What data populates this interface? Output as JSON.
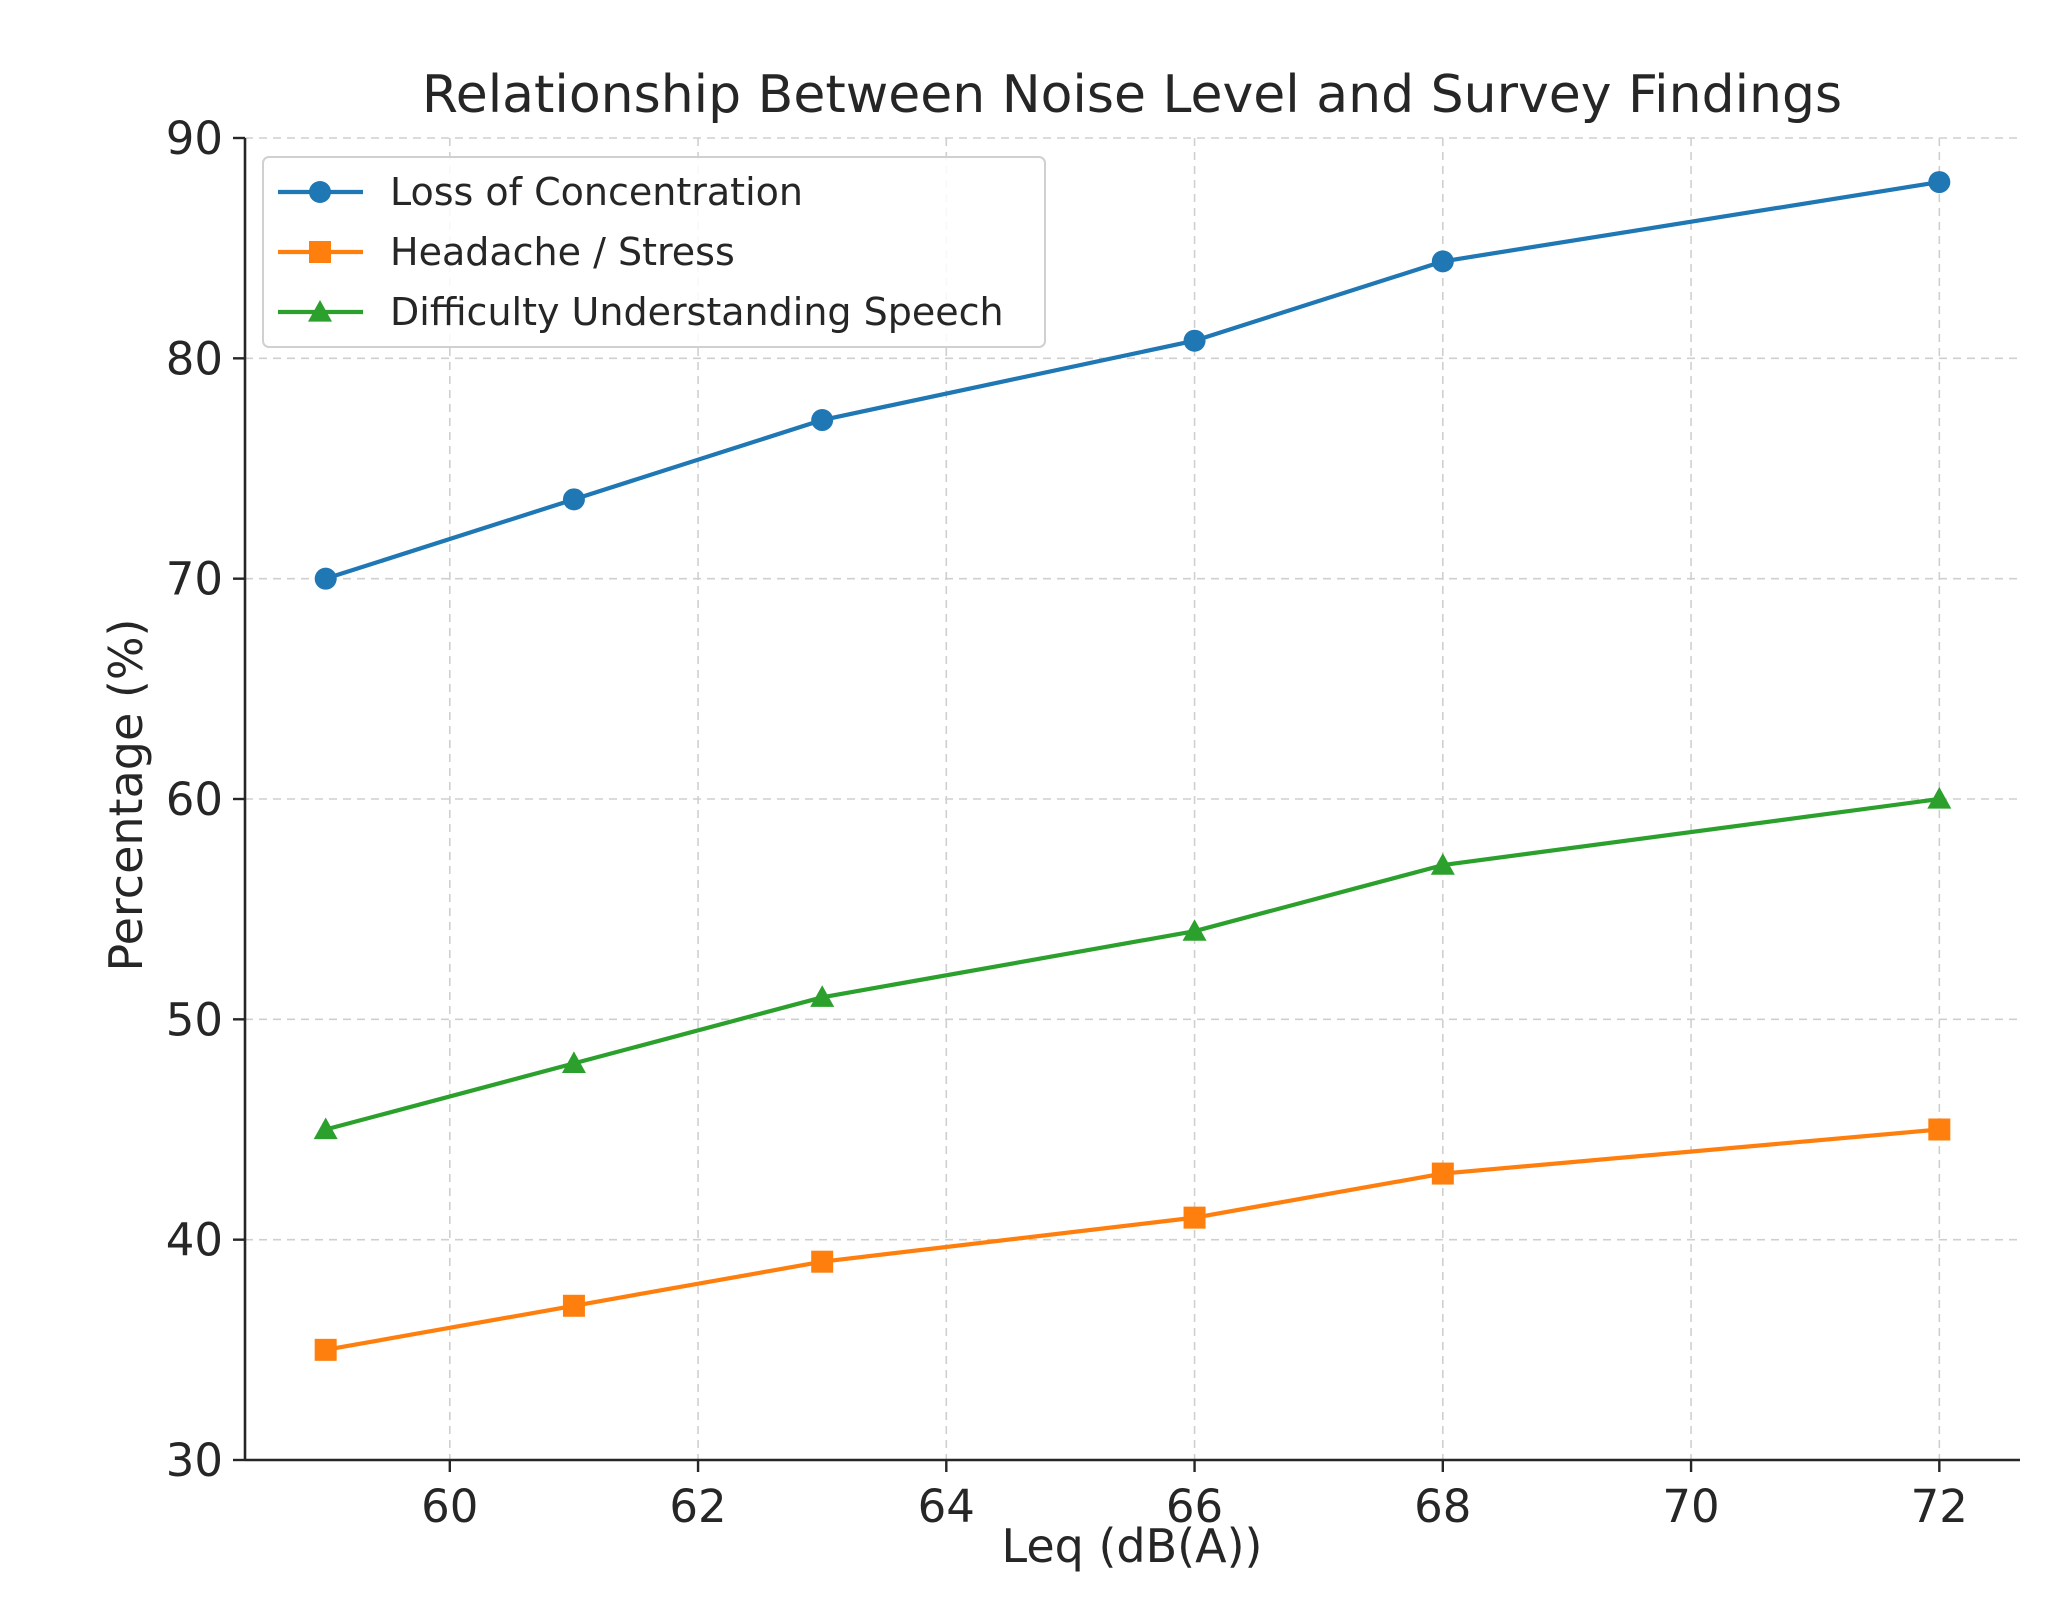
{
  "chart_data": {
    "type": "line",
    "title": "Relationship Between Noise Level and Survey Findings",
    "xlabel": "Leq (dB(A))",
    "ylabel": "Percentage (%)",
    "x": [
      59,
      61,
      63,
      66,
      68,
      72
    ],
    "xlim": [
      58.35,
      72.65
    ],
    "ylim": [
      30,
      90
    ],
    "xticks": [
      60,
      62,
      64,
      66,
      68,
      70,
      72
    ],
    "yticks": [
      30,
      40,
      50,
      60,
      70,
      80,
      90
    ],
    "grid": true,
    "legend_position": "top-left",
    "series": [
      {
        "name": "Loss of Concentration",
        "values": [
          70,
          73.6,
          77.2,
          80.8,
          84.4,
          88
        ],
        "color": "#1f77b4",
        "marker": "circle"
      },
      {
        "name": "Headache / Stress",
        "values": [
          35,
          37,
          39,
          41,
          43,
          45
        ],
        "color": "#ff7f0e",
        "marker": "square"
      },
      {
        "name": "Difficulty Understanding Speech",
        "values": [
          45,
          48,
          51,
          54,
          57,
          60
        ],
        "color": "#2ca02c",
        "marker": "triangle"
      }
    ]
  }
}
